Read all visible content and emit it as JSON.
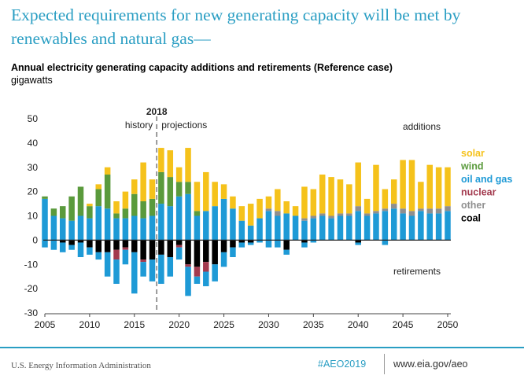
{
  "headline": "Expected requirements for new generating capacity will be met by renewables and natural gas—",
  "chart_title": "Annual electricity generating capacity additions and retirements (Reference case)",
  "units": "gigawatts",
  "footer": {
    "agency": "U.S. Energy Information Administration",
    "hashtag": "#AEO2019",
    "url": "www.eia.gov/aeo"
  },
  "chart_data": {
    "type": "bar",
    "stacked": true,
    "x": [
      2005,
      2006,
      2007,
      2008,
      2009,
      2010,
      2011,
      2012,
      2013,
      2014,
      2015,
      2016,
      2017,
      2018,
      2019,
      2020,
      2021,
      2022,
      2023,
      2024,
      2025,
      2026,
      2027,
      2028,
      2029,
      2030,
      2031,
      2032,
      2033,
      2034,
      2035,
      2036,
      2037,
      2038,
      2039,
      2040,
      2041,
      2042,
      2043,
      2044,
      2045,
      2046,
      2047,
      2048,
      2049,
      2050
    ],
    "xlim": [
      2005,
      2050
    ],
    "ylim": [
      -30,
      50
    ],
    "yticks": [
      -30,
      -20,
      -10,
      0,
      10,
      20,
      30,
      40,
      50
    ],
    "xticks": [
      2005,
      2010,
      2015,
      2020,
      2025,
      2030,
      2035,
      2040,
      2045,
      2050
    ],
    "divider_year": 2018,
    "divider_label": "2018",
    "period_labels": {
      "history": "history",
      "projections": "projections"
    },
    "region_labels": {
      "additions": "additions",
      "retirements": "retirements"
    },
    "colors": {
      "solar": "#f5c21b",
      "wind": "#5a9a3c",
      "oil_and_gas": "#1e9ad6",
      "nuclear": "#a33a4e",
      "other": "#8f8f8f",
      "coal": "#000000"
    },
    "additions": [
      {
        "name": "oil and gas",
        "key": "oil_and_gas",
        "values": [
          17,
          10,
          9,
          8,
          10,
          9,
          14,
          13,
          9,
          9,
          10,
          9,
          10,
          15,
          14,
          18,
          19,
          10,
          12,
          14,
          17,
          13,
          8,
          6,
          9,
          12,
          10,
          11,
          10,
          8,
          9,
          10,
          9,
          10,
          10,
          12,
          10,
          11,
          12,
          13,
          11,
          10,
          12,
          11,
          11,
          12
        ]
      },
      {
        "name": "nuclear",
        "key": "nuclear",
        "values": [
          0,
          0,
          0,
          0,
          0,
          0,
          0,
          0,
          0,
          0,
          0,
          0,
          0,
          0,
          0,
          0,
          0,
          0,
          0,
          0,
          0,
          0,
          0,
          0,
          0,
          0,
          0,
          0,
          0,
          0,
          0,
          0,
          0,
          0,
          0,
          0,
          0,
          0,
          0,
          0,
          0,
          0,
          0,
          0,
          0,
          0
        ]
      },
      {
        "name": "other",
        "key": "other",
        "values": [
          0,
          0,
          0,
          0,
          0,
          0,
          0,
          0,
          0,
          0,
          0,
          0,
          0,
          0,
          0,
          0,
          0,
          0,
          0,
          0,
          0,
          0,
          0,
          0,
          0,
          1,
          2,
          0,
          0,
          1,
          1,
          1,
          1,
          1,
          1,
          2,
          1,
          1,
          1,
          2,
          2,
          2,
          1,
          2,
          2,
          2
        ]
      },
      {
        "name": "wind",
        "key": "wind",
        "values": [
          1,
          3,
          5,
          10,
          12,
          5,
          7,
          14,
          2,
          4,
          9,
          7,
          7,
          13,
          12,
          6,
          5,
          2,
          0,
          0,
          0,
          0,
          0,
          0,
          0,
          0,
          0,
          0,
          0,
          0,
          0,
          0,
          0,
          0,
          0,
          0,
          0,
          0,
          0,
          0,
          0,
          0,
          0,
          0,
          0,
          0
        ]
      },
      {
        "name": "solar",
        "key": "solar",
        "values": [
          0,
          0,
          0,
          0,
          0,
          1,
          2,
          3,
          5,
          7,
          6,
          16,
          8,
          10,
          11,
          6,
          14,
          12,
          16,
          10,
          6,
          5,
          6,
          9,
          8,
          5,
          9,
          5,
          4,
          13,
          11,
          16,
          16,
          14,
          12,
          18,
          6,
          19,
          8,
          10,
          20,
          21,
          11,
          18,
          17,
          16
        ]
      }
    ],
    "retirements": [
      {
        "name": "coal",
        "key": "coal",
        "values": [
          0,
          0,
          -1,
          -2,
          -1,
          -3,
          -5,
          -5,
          -4,
          -3,
          -5,
          -8,
          -8,
          -6,
          -7,
          -2,
          -10,
          -11,
          -9,
          -10,
          -5,
          -3,
          -1,
          -1,
          0,
          0,
          0,
          -4,
          0,
          -1,
          0,
          0,
          0,
          0,
          0,
          -1,
          0,
          0,
          0,
          0,
          0,
          0,
          0,
          0,
          0,
          0
        ]
      },
      {
        "name": "nuclear",
        "key": "nuclear",
        "values": [
          0,
          0,
          0,
          0,
          0,
          0,
          0,
          0,
          -4,
          -1,
          0,
          -1,
          0,
          0,
          0,
          -1,
          -1,
          -4,
          -4,
          0,
          0,
          0,
          0,
          0,
          0,
          0,
          0,
          0,
          0,
          0,
          0,
          0,
          0,
          0,
          0,
          0,
          0,
          0,
          0,
          0,
          0,
          0,
          0,
          0,
          0,
          0,
          0
        ]
      },
      {
        "name": "oil and gas",
        "key": "oil_and_gas",
        "values": [
          -3,
          -4,
          -4,
          -2,
          -6,
          -3,
          -3,
          -10,
          -10,
          -6,
          -17,
          -6,
          -9,
          -12,
          -8,
          -5,
          -12,
          -3,
          -6,
          -7,
          -6,
          -4,
          -2,
          -1,
          -1,
          -3,
          -3,
          -2,
          0,
          -2,
          -1,
          0,
          0,
          0,
          0,
          -1,
          0,
          0,
          -2,
          0,
          0,
          0,
          0,
          0,
          0,
          0
        ]
      }
    ],
    "legend": [
      {
        "label": "solar",
        "key": "solar"
      },
      {
        "label": "wind",
        "key": "wind"
      },
      {
        "label": "oil and gas",
        "key": "oil_and_gas"
      },
      {
        "label": "nuclear",
        "key": "nuclear"
      },
      {
        "label": "other",
        "key": "other"
      },
      {
        "label": "coal",
        "key": "coal"
      }
    ]
  }
}
